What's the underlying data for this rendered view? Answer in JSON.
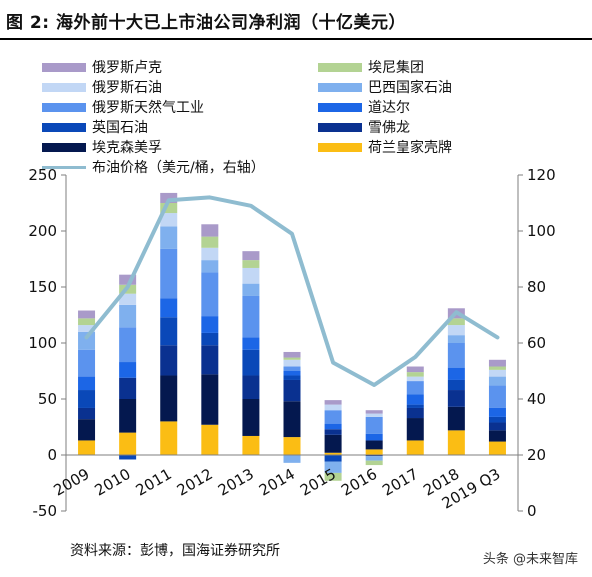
{
  "figure": {
    "title": "图 2:  海外前十大已上市油公司净利润（十亿美元）",
    "source": "资料来源：彭博，国海证券研究所",
    "watermark": "头条 @未来智库"
  },
  "legend": {
    "items": [
      {
        "label": "俄罗斯卢克",
        "color": "#a99ac9"
      },
      {
        "label": "埃尼集团",
        "color": "#b3d393"
      },
      {
        "label": "俄罗斯石油",
        "color": "#c2d7f5"
      },
      {
        "label": "巴西国家石油",
        "color": "#7fb0ee"
      },
      {
        "label": "俄罗斯天然气工业",
        "color": "#5b93ee"
      },
      {
        "label": "道达尔",
        "color": "#1c66e6"
      },
      {
        "label": "英国石油",
        "color": "#0a48b8"
      },
      {
        "label": "雪佛龙",
        "color": "#0a3190"
      },
      {
        "label": "埃克森美孚",
        "color": "#04184f"
      },
      {
        "label": "荷兰皇家壳牌",
        "color": "#fbbd14"
      }
    ],
    "line_label": "布油价格（美元/桶，右轴）",
    "line_color": "#8fbcd0"
  },
  "chart_data": {
    "type": "bar",
    "stacked": true,
    "categories": [
      "2009",
      "2010",
      "2011",
      "2012",
      "2013",
      "2014",
      "2015",
      "2016",
      "2017",
      "2018",
      "2019 Q3"
    ],
    "ylim": [
      -50,
      250
    ],
    "yticks": [
      -50,
      0,
      50,
      100,
      150,
      200,
      250
    ],
    "y2lim": [
      0,
      120
    ],
    "y2ticks": [
      0,
      20,
      40,
      60,
      80,
      100,
      120
    ],
    "series": [
      {
        "name": "荷兰皇家壳牌",
        "values": [
          13,
          20,
          30,
          27,
          17,
          16,
          2,
          5,
          13,
          22,
          12
        ]
      },
      {
        "name": "埃克森美孚",
        "values": [
          19,
          30,
          41,
          45,
          33,
          32,
          16,
          8,
          20,
          21,
          10
        ]
      },
      {
        "name": "雪佛龙",
        "values": [
          10,
          19,
          27,
          26,
          21,
          19,
          5,
          -1,
          9,
          15,
          7
        ]
      },
      {
        "name": "英国石油",
        "values": [
          16,
          -4,
          25,
          11,
          23,
          4,
          -6,
          0,
          3,
          9,
          5
        ]
      },
      {
        "name": "道达尔",
        "values": [
          12,
          14,
          17,
          15,
          11,
          4,
          5,
          6,
          9,
          11,
          8
        ]
      },
      {
        "name": "俄罗斯天然气工业",
        "values": [
          24,
          31,
          44,
          39,
          37,
          4,
          12,
          15,
          12,
          22,
          20
        ]
      },
      {
        "name": "巴西国家石油",
        "values": [
          16,
          20,
          20,
          11,
          11,
          -7,
          -10,
          -4,
          0,
          7,
          8
        ]
      },
      {
        "name": "俄罗斯石油",
        "values": [
          6,
          10,
          12,
          11,
          14,
          6,
          5,
          3,
          4,
          9,
          6
        ]
      },
      {
        "name": "埃尼集团",
        "values": [
          6,
          8,
          9,
          10,
          7,
          2,
          -7,
          -4,
          4,
          6,
          3
        ]
      },
      {
        "name": "俄罗斯卢克",
        "values": [
          7,
          9,
          9,
          11,
          8,
          5,
          4,
          3,
          5,
          9,
          6
        ]
      }
    ],
    "line": {
      "name": "布油价格（美元/桶，右轴）",
      "axis": "right",
      "values": [
        62,
        80,
        111,
        112,
        109,
        99,
        53,
        45,
        55,
        71,
        62
      ]
    },
    "grid": false
  }
}
